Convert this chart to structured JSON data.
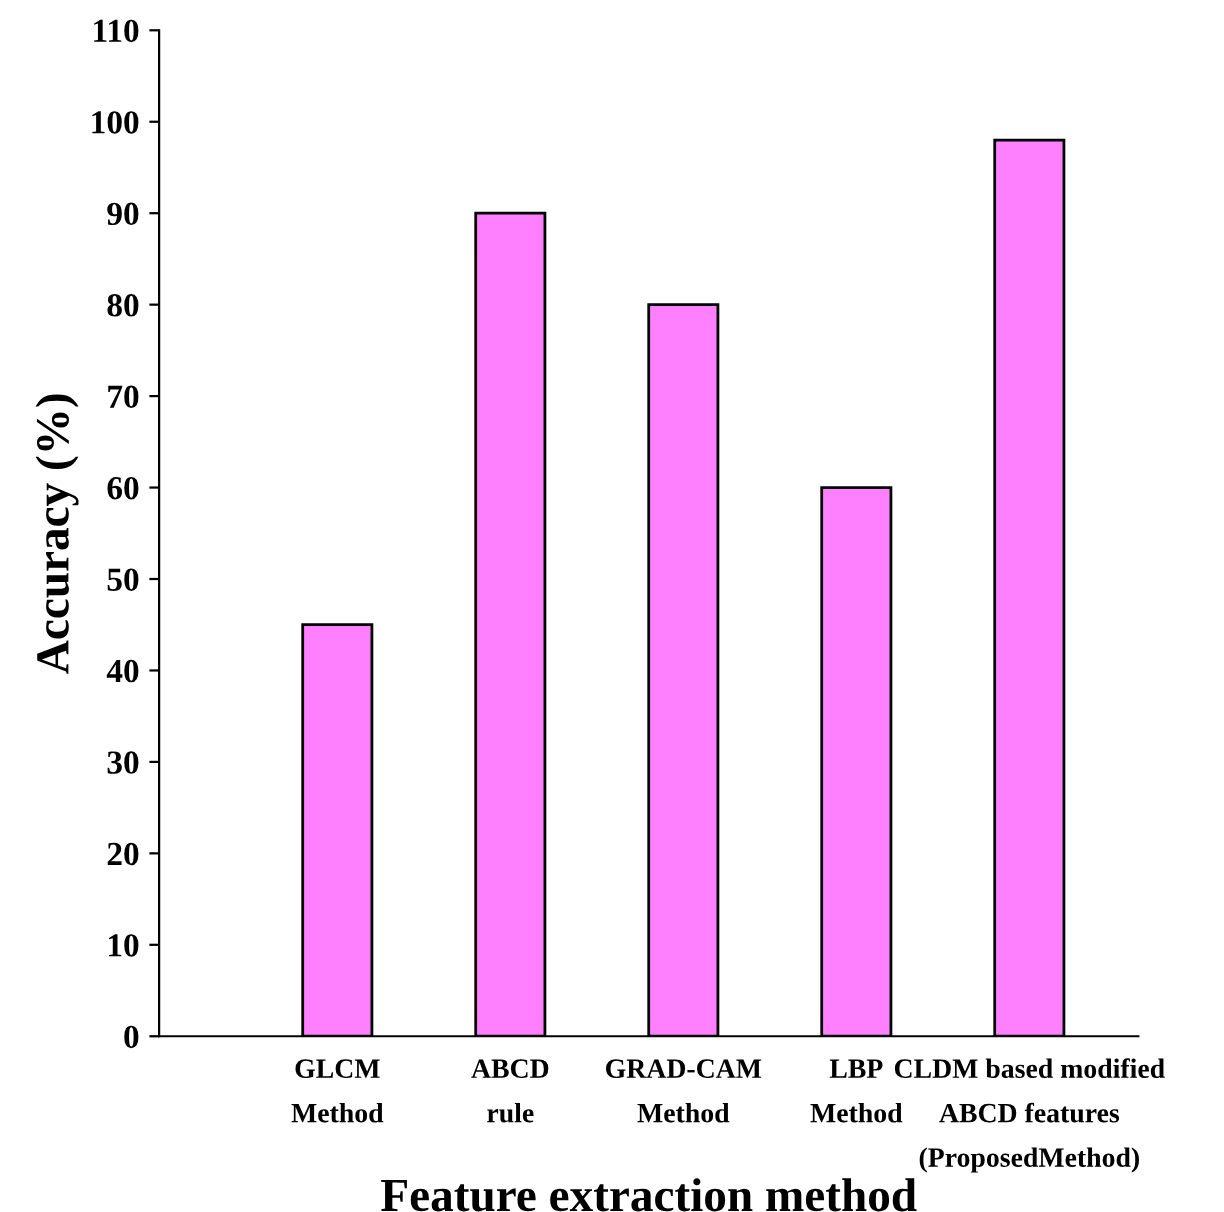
{
  "chart_data": {
    "type": "bar",
    "xlabel": "Feature extraction method",
    "ylabel": "Accuracy (%)",
    "categories": [
      null,
      "GLCM\nMethod",
      "ABCD\nrule",
      "GRAD-CAM\nMethod",
      "LBP\nMethod",
      "CLDM based modified\nABCD features\n(ProposedMethod)"
    ],
    "values": [
      null,
      45,
      90,
      80,
      60,
      98
    ],
    "color": "#ff80ff",
    "ylim": [
      0,
      110
    ],
    "yticks": [
      0,
      10,
      20,
      30,
      40,
      50,
      60,
      70,
      80,
      90,
      100,
      110
    ],
    "grid": false,
    "legend": false
  }
}
